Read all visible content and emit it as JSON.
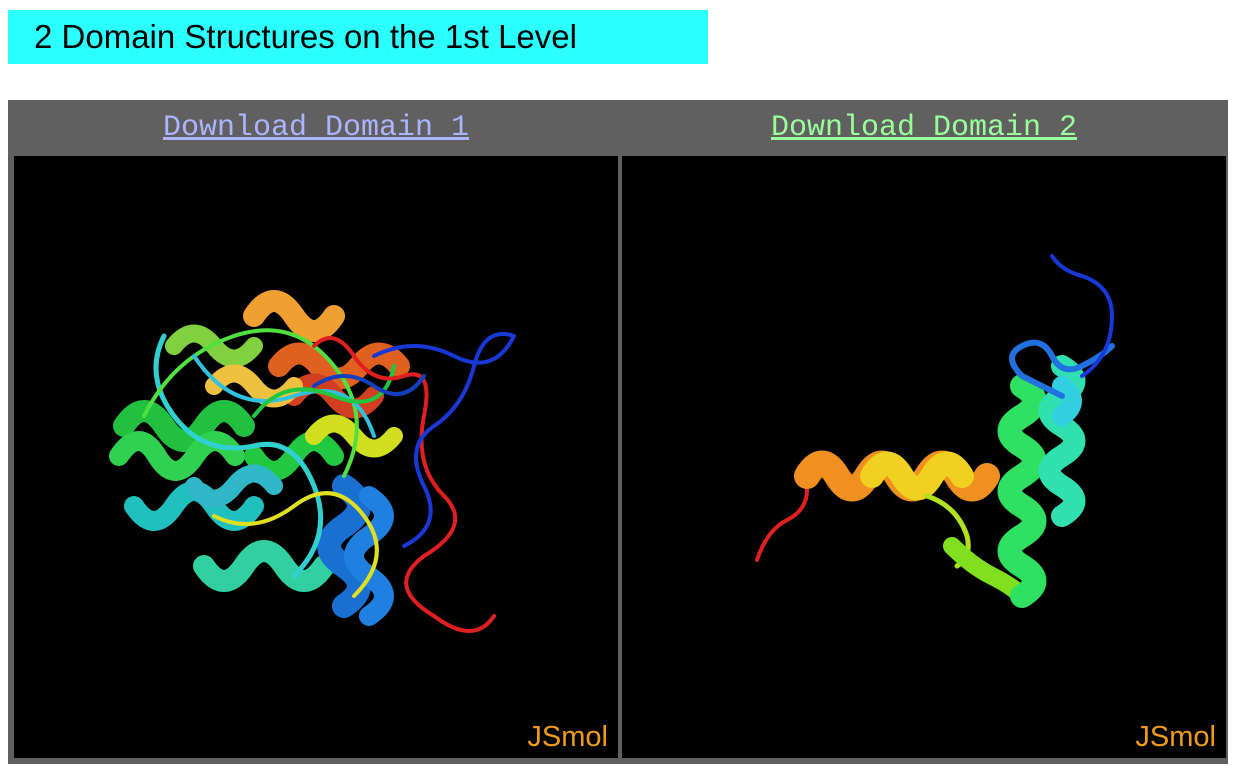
{
  "banner": {
    "title": "2 Domain Structures on the 1st Level",
    "background_color": "#2bffff"
  },
  "domains": [
    {
      "link_label": "Download Domain 1",
      "link_color": "#aab4ff",
      "viewer_watermark": "JSmol"
    },
    {
      "link_label": "Download Domain 2",
      "link_color": "#99ff99",
      "viewer_watermark": "JSmol"
    }
  ],
  "colors": {
    "table_frame": "#606060",
    "viewer_background": "#000000",
    "watermark": "#f09a1a"
  }
}
